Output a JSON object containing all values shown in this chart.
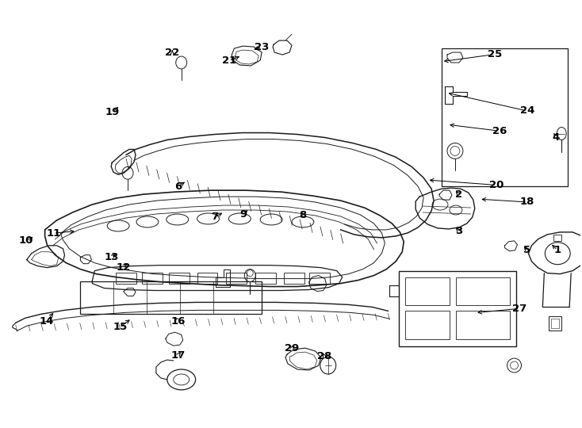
{
  "bg_color": "#ffffff",
  "line_color": "#1a1a1a",
  "fig_width": 7.34,
  "fig_height": 5.4,
  "dpi": 100,
  "label_data": [
    [
      1,
      0.96,
      0.415,
      0.948,
      0.432
    ],
    [
      2,
      0.79,
      0.545,
      0.782,
      0.558
    ],
    [
      3,
      0.79,
      0.46,
      0.782,
      0.472
    ],
    [
      4,
      0.958,
      0.68,
      0.952,
      0.695
    ],
    [
      5,
      0.908,
      0.415,
      0.9,
      0.428
    ],
    [
      6,
      0.305,
      0.565,
      0.32,
      0.578
    ],
    [
      7,
      0.368,
      0.493,
      0.385,
      0.505
    ],
    [
      8,
      0.52,
      0.498,
      0.515,
      0.51
    ],
    [
      9,
      0.418,
      0.5,
      0.428,
      0.513
    ],
    [
      10,
      0.042,
      0.438,
      0.058,
      0.448
    ],
    [
      11,
      0.09,
      0.455,
      0.13,
      0.46
    ],
    [
      12,
      0.21,
      0.375,
      0.22,
      0.388
    ],
    [
      13,
      0.19,
      0.398,
      0.2,
      0.41
    ],
    [
      14,
      0.078,
      0.248,
      0.092,
      0.272
    ],
    [
      15,
      0.205,
      0.235,
      0.225,
      0.255
    ],
    [
      16,
      0.305,
      0.248,
      0.295,
      0.262
    ],
    [
      17,
      0.305,
      0.168,
      0.312,
      0.18
    ],
    [
      18,
      0.908,
      0.528,
      0.825,
      0.535
    ],
    [
      19,
      0.192,
      0.74,
      0.205,
      0.755
    ],
    [
      20,
      0.855,
      0.568,
      0.735,
      0.58
    ],
    [
      21,
      0.393,
      0.86,
      0.415,
      0.872
    ],
    [
      22,
      0.295,
      0.878,
      0.295,
      0.89
    ],
    [
      23,
      0.45,
      0.892,
      0.432,
      0.885
    ],
    [
      24,
      0.908,
      0.742,
      0.768,
      0.785
    ],
    [
      25,
      0.852,
      0.875,
      0.76,
      0.858
    ],
    [
      26,
      0.86,
      0.695,
      0.77,
      0.71
    ],
    [
      27,
      0.895,
      0.278,
      0.818,
      0.268
    ],
    [
      28,
      0.558,
      0.165,
      0.553,
      0.178
    ],
    [
      29,
      0.502,
      0.185,
      0.505,
      0.198
    ]
  ]
}
